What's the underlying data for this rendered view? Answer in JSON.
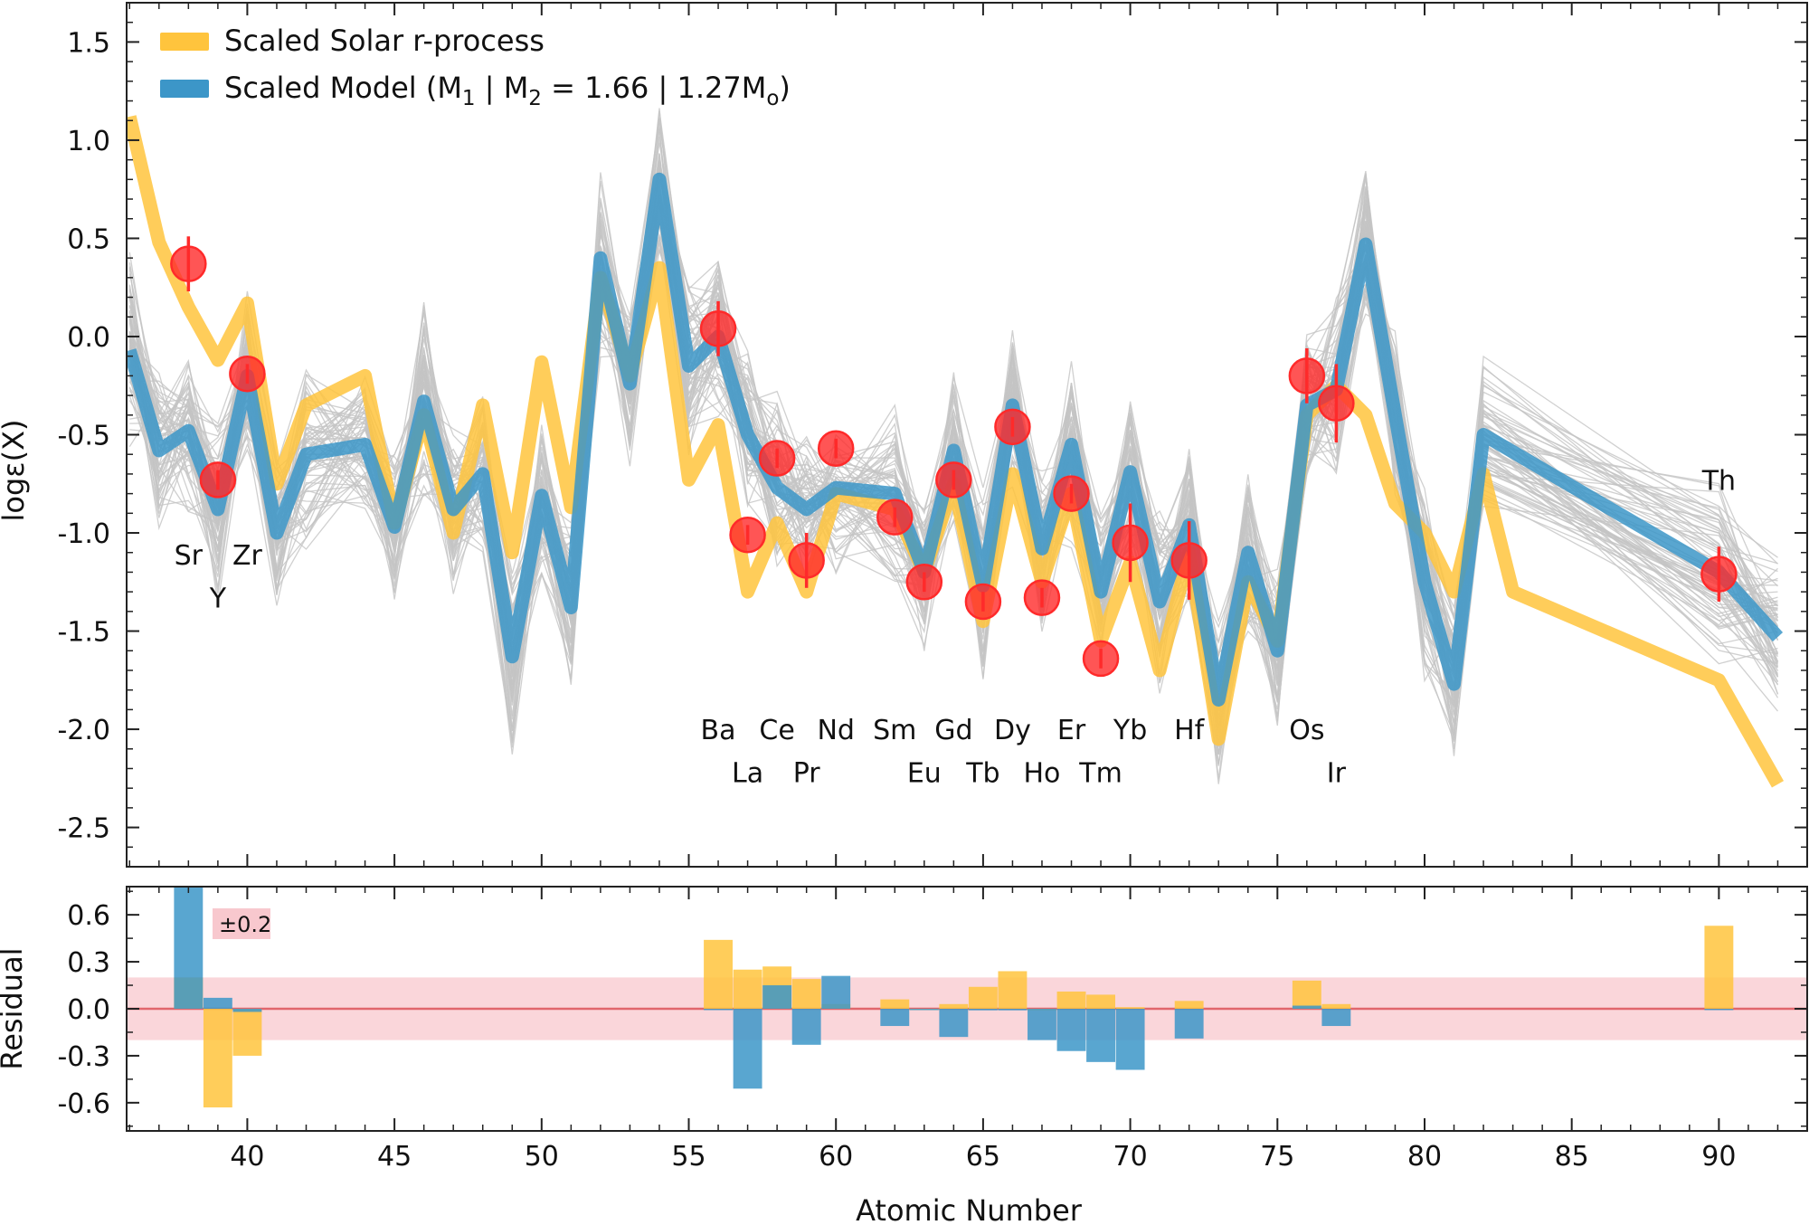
{
  "colors": {
    "solar": "#FFC43D",
    "model": "#3C96C8",
    "obs": "#FF2A2A",
    "band": "#F8C8CE",
    "zeroline": "#E0666C",
    "grey": "#C4C4C4"
  },
  "chart_data": [
    {
      "type": "line",
      "panel": "main",
      "xlabel": "Atomic Number",
      "ylabel": "logε(X)",
      "xlim": [
        35.9,
        93.0
      ],
      "ylim": [
        -2.7,
        1.7
      ],
      "xticks": [
        40,
        45,
        50,
        55,
        60,
        65,
        70,
        75,
        80,
        85,
        90
      ],
      "yticks": [
        1.5,
        1.0,
        0.5,
        0.0,
        -0.5,
        -1.0,
        -1.5,
        -2.0,
        -2.5
      ],
      "ytick_labels": [
        "1.5",
        "1.0",
        "0.5",
        "0.0",
        "-0.5",
        "-1.0",
        "-1.5",
        "-2.0",
        "-2.5"
      ],
      "legend": {
        "location": "top-left",
        "solar_label": "Scaled Solar r-process",
        "model_label_main": "Scaled Model (M",
        "model_label_sub1": "1",
        "model_label_mid": " | M",
        "model_label_sub2": "2",
        "model_label_tail": " = 1.66 | 1.27M",
        "model_label_sub3": "o",
        "model_label_end": ")"
      },
      "series": [
        {
          "name": "Scaled Solar r-process",
          "x": [
            36,
            37,
            38,
            39,
            40,
            41,
            42,
            44,
            45,
            46,
            47,
            48,
            49,
            50,
            51,
            52,
            53,
            54,
            55,
            56,
            57,
            58,
            59,
            60,
            62,
            63,
            64,
            65,
            66,
            67,
            68,
            69,
            70,
            71,
            72,
            73,
            74,
            75,
            76,
            77,
            78,
            79,
            80,
            81,
            82,
            83,
            90,
            92
          ],
          "values": [
            1.12,
            0.48,
            0.15,
            -0.12,
            0.17,
            -0.75,
            -0.35,
            -0.2,
            -0.95,
            -0.4,
            -1.0,
            -0.35,
            -1.1,
            -0.13,
            -0.87,
            0.3,
            -0.2,
            0.35,
            -0.73,
            -0.45,
            -1.3,
            -0.95,
            -1.3,
            -0.8,
            -0.88,
            -1.2,
            -0.75,
            -1.45,
            -0.7,
            -1.25,
            -0.8,
            -1.55,
            -1.15,
            -1.7,
            -1.1,
            -2.05,
            -1.25,
            -1.55,
            -0.4,
            -0.25,
            -0.4,
            -0.85,
            -1.0,
            -1.3,
            -0.7,
            -1.3,
            -1.75,
            -2.28
          ]
        },
        {
          "name": "Scaled Model",
          "x": [
            36,
            37,
            38,
            39,
            40,
            41,
            42,
            44,
            45,
            46,
            47,
            48,
            49,
            50,
            51,
            52,
            53,
            54,
            55,
            56,
            57,
            58,
            59,
            60,
            62,
            63,
            64,
            65,
            66,
            67,
            68,
            69,
            70,
            71,
            72,
            73,
            74,
            75,
            76,
            77,
            78,
            79,
            80,
            81,
            82,
            90,
            92
          ],
          "values": [
            -0.07,
            -0.58,
            -0.48,
            -0.88,
            -0.2,
            -1.0,
            -0.6,
            -0.55,
            -0.97,
            -0.33,
            -0.88,
            -0.7,
            -1.63,
            -0.81,
            -1.38,
            0.4,
            -0.24,
            0.8,
            -0.15,
            0.0,
            -0.5,
            -0.77,
            -0.88,
            -0.77,
            -0.8,
            -1.2,
            -0.58,
            -1.27,
            -0.35,
            -1.08,
            -0.55,
            -1.3,
            -0.69,
            -1.35,
            -0.96,
            -1.85,
            -1.1,
            -1.6,
            -0.35,
            -0.27,
            0.47,
            -0.4,
            -1.25,
            -1.77,
            -0.5,
            -1.2,
            -1.53
          ]
        },
        {
          "name": "Observed",
          "x": [
            38,
            39,
            40,
            56,
            57,
            58,
            59,
            60,
            62,
            63,
            64,
            65,
            66,
            67,
            68,
            69,
            70,
            72,
            76,
            77,
            90
          ],
          "values": [
            0.37,
            -0.73,
            -0.19,
            0.04,
            -1.01,
            -0.62,
            -1.14,
            -0.57,
            -0.92,
            -1.25,
            -0.73,
            -1.35,
            -0.46,
            -1.33,
            -0.8,
            -1.64,
            -1.05,
            -1.14,
            -0.2,
            -0.34,
            -1.21
          ],
          "errors": [
            0.14,
            0.05,
            0.05,
            0.14,
            0.05,
            0.05,
            0.14,
            0.05,
            0.05,
            0.05,
            0.05,
            0.05,
            0.05,
            0.05,
            0.05,
            0.05,
            0.2,
            0.2,
            0.14,
            0.2,
            0.14
          ]
        }
      ],
      "element_labels": [
        {
          "z": 38,
          "label": "Sr",
          "row": "upper",
          "y": -1.16
        },
        {
          "z": 39,
          "label": "Y",
          "row": "lower",
          "y": -1.38
        },
        {
          "z": 40,
          "label": "Zr",
          "row": "upper",
          "y": -1.16
        },
        {
          "z": 56,
          "label": "Ba",
          "row": "upper",
          "y": -2.05
        },
        {
          "z": 57,
          "label": "La",
          "row": "lower",
          "y": -2.27
        },
        {
          "z": 58,
          "label": "Ce",
          "row": "upper",
          "y": -2.05
        },
        {
          "z": 59,
          "label": "Pr",
          "row": "lower",
          "y": -2.27
        },
        {
          "z": 60,
          "label": "Nd",
          "row": "upper",
          "y": -2.05
        },
        {
          "z": 62,
          "label": "Sm",
          "row": "upper",
          "y": -2.05
        },
        {
          "z": 63,
          "label": "Eu",
          "row": "lower",
          "y": -2.27
        },
        {
          "z": 64,
          "label": "Gd",
          "row": "upper",
          "y": -2.05
        },
        {
          "z": 65,
          "label": "Tb",
          "row": "lower",
          "y": -2.27
        },
        {
          "z": 66,
          "label": "Dy",
          "row": "upper",
          "y": -2.05
        },
        {
          "z": 67,
          "label": "Ho",
          "row": "lower",
          "y": -2.27
        },
        {
          "z": 68,
          "label": "Er",
          "row": "upper",
          "y": -2.05
        },
        {
          "z": 69,
          "label": "Tm",
          "row": "lower",
          "y": -2.27
        },
        {
          "z": 70,
          "label": "Yb",
          "row": "upper",
          "y": -2.05
        },
        {
          "z": 72,
          "label": "Hf",
          "row": "upper",
          "y": -2.05
        },
        {
          "z": 76,
          "label": "Os",
          "row": "upper",
          "y": -2.05
        },
        {
          "z": 77,
          "label": "Ir",
          "row": "lower",
          "y": -2.27
        },
        {
          "z": 90,
          "label": "Th",
          "row": "upper",
          "y": -0.78
        }
      ]
    },
    {
      "type": "bar",
      "panel": "residual",
      "xlabel": "Atomic Number",
      "ylabel": "Residual",
      "xlim": [
        35.9,
        93.0
      ],
      "ylim": [
        -0.78,
        0.78
      ],
      "yticks": [
        0.6,
        0.3,
        0.0,
        -0.3,
        -0.6
      ],
      "ytick_labels": [
        "0.6",
        "0.3",
        "0.0",
        "-0.3",
        "-0.6"
      ],
      "band": 0.2,
      "band_label": "±0.2",
      "series": [
        {
          "name": "Solar residual",
          "x": [
            38,
            39,
            40,
            56,
            57,
            58,
            59,
            60,
            62,
            63,
            64,
            65,
            66,
            67,
            68,
            69,
            70,
            72,
            76,
            77,
            90
          ],
          "values": [
            0.2,
            -0.63,
            -0.3,
            0.44,
            0.25,
            0.27,
            0.19,
            0.03,
            0.06,
            0.0,
            0.03,
            0.14,
            0.24,
            -0.01,
            0.11,
            0.09,
            0.01,
            0.05,
            0.18,
            0.03,
            0.53
          ]
        },
        {
          "name": "Model residual",
          "x": [
            38,
            39,
            40,
            56,
            57,
            58,
            59,
            60,
            62,
            63,
            64,
            65,
            66,
            67,
            68,
            69,
            70,
            72,
            76,
            77,
            90
          ],
          "values": [
            0.78,
            0.07,
            -0.02,
            0.0,
            -0.51,
            0.15,
            -0.23,
            0.21,
            -0.11,
            0.0,
            -0.18,
            -0.01,
            -0.01,
            -0.2,
            -0.27,
            -0.34,
            -0.39,
            -0.19,
            0.02,
            -0.11,
            0.0
          ]
        }
      ]
    }
  ]
}
